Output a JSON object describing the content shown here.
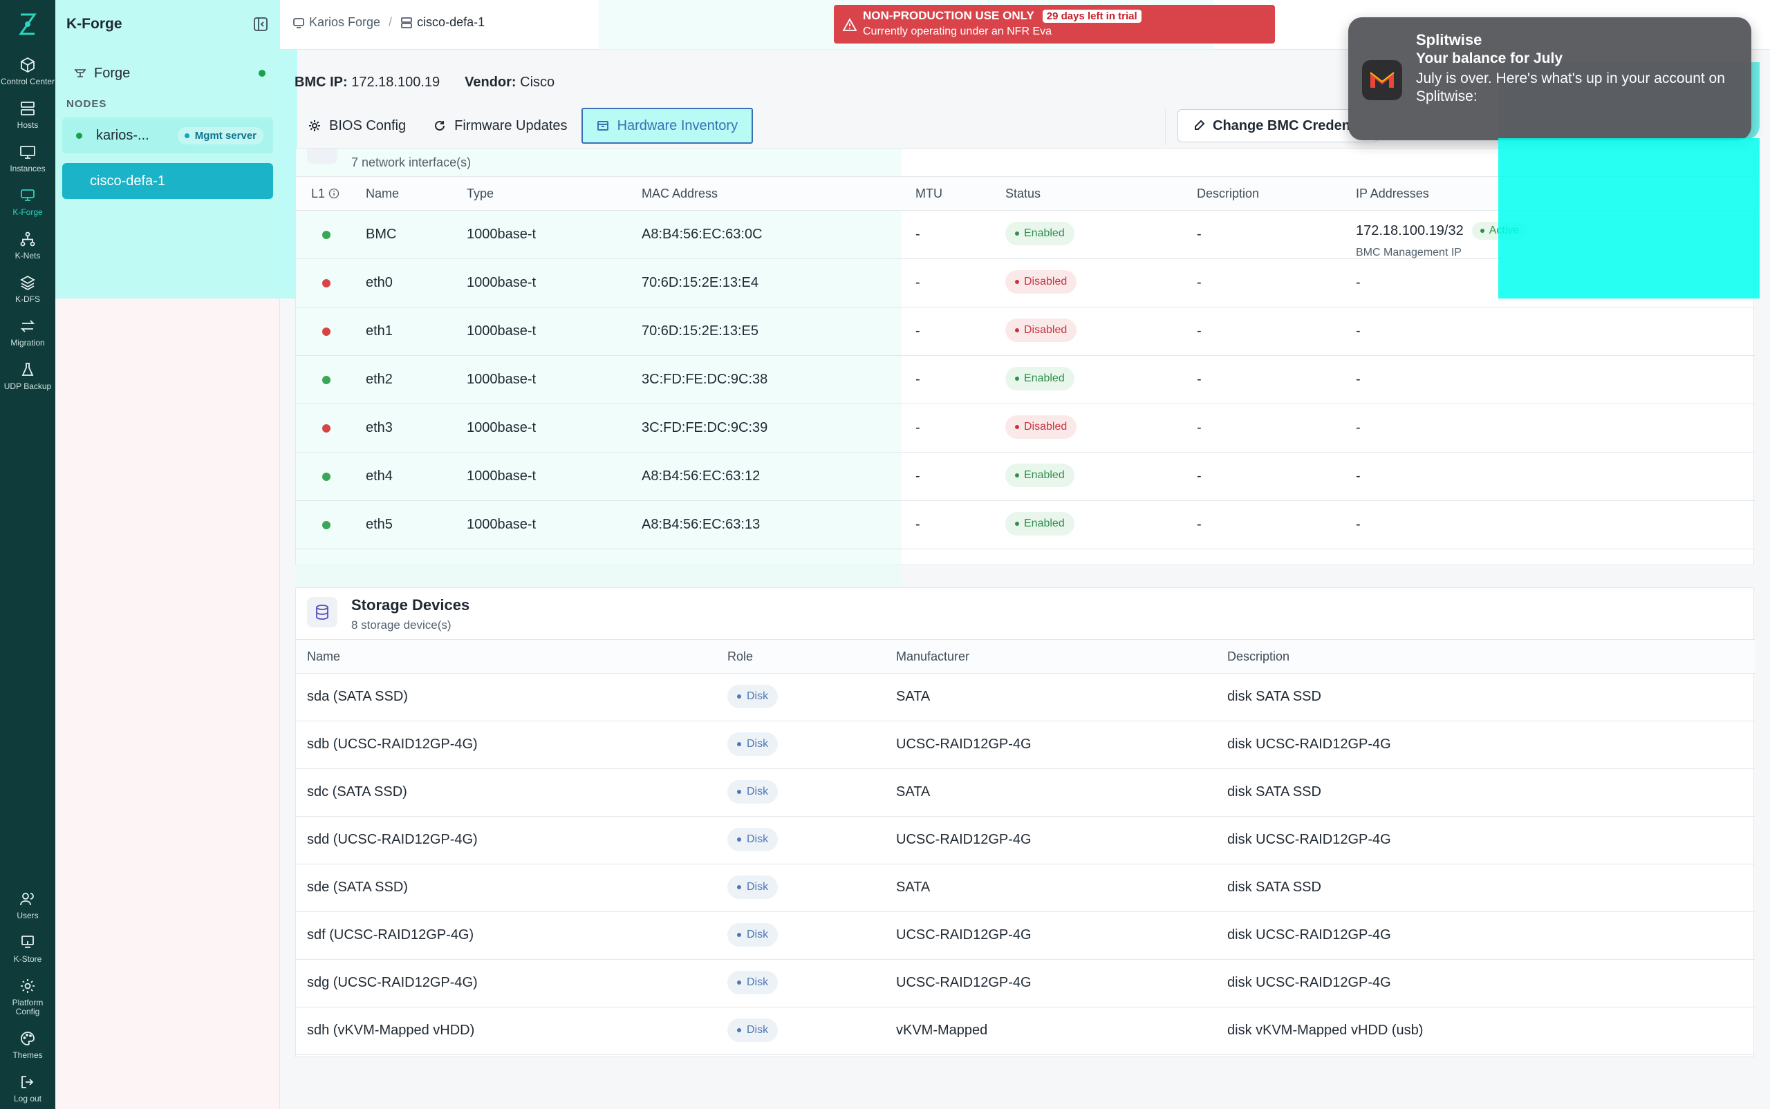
{
  "rail": {
    "items": [
      {
        "id": "control-center",
        "label": "Control Center",
        "icon": "cube-icon"
      },
      {
        "id": "hosts",
        "label": "Hosts",
        "icon": "server-icon"
      },
      {
        "id": "instances",
        "label": "Instances",
        "icon": "monitor-icon"
      },
      {
        "id": "k-forge",
        "label": "K-Forge",
        "icon": "forge-icon",
        "active": true
      },
      {
        "id": "k-nets",
        "label": "K-Nets",
        "icon": "network-icon"
      },
      {
        "id": "k-dfs",
        "label": "K-DFS",
        "icon": "layers-icon"
      },
      {
        "id": "migration",
        "label": "Migration",
        "icon": "arrows-icon"
      },
      {
        "id": "udp-backup",
        "label": "UDP Backup",
        "icon": "flask-icon"
      }
    ],
    "bottom": [
      {
        "id": "users",
        "label": "Users",
        "icon": "users-icon"
      },
      {
        "id": "k-store",
        "label": "K-Store",
        "icon": "store-icon"
      },
      {
        "id": "platform-config",
        "label": "Platform Config",
        "icon": "gear-icon"
      },
      {
        "id": "themes",
        "label": "Themes",
        "icon": "palette-icon"
      },
      {
        "id": "logout",
        "label": "Log out",
        "icon": "logout-icon"
      }
    ]
  },
  "tree": {
    "title": "K-Forge",
    "forge_label": "Forge",
    "nodes_label": "NODES",
    "nodes": [
      {
        "name": "karios-...",
        "badge": "Mgmt server"
      },
      {
        "name": "cisco-defa-1"
      }
    ]
  },
  "breadcrumb": {
    "root": "Karios Forge",
    "separator": "/",
    "current": "cisco-defa-1"
  },
  "trial": {
    "title": "NON-PRODUCTION USE ONLY",
    "pill": "29 days left in trial",
    "subtitle": "Currently operating under an NFR Eva"
  },
  "info": {
    "bmc_ip_label": "BMC IP:",
    "bmc_ip": "172.18.100.19",
    "vendor_label": "Vendor:",
    "vendor": "Cisco"
  },
  "tabs": [
    {
      "label": "BIOS Config",
      "icon": "gear-icon"
    },
    {
      "label": "Firmware Updates",
      "icon": "refresh-icon"
    },
    {
      "label": "Hardware Inventory",
      "icon": "box-icon",
      "active": true
    }
  ],
  "change_bmc_label": "Change BMC Creden",
  "network": {
    "subtitle": "7 network interface(s)",
    "columns": {
      "l1": "L1",
      "name": "Name",
      "type": "Type",
      "mac": "MAC Address",
      "mtu": "MTU",
      "status": "Status",
      "description": "Description",
      "ip": "IP Addresses"
    },
    "rows": [
      {
        "up": true,
        "name": "BMC",
        "type": "1000base-t",
        "mac": "A8:B4:56:EC:63:0C",
        "mtu": "-",
        "status": "Enabled",
        "description": "-",
        "ip": "172.18.100.19/32",
        "ip_badge": "Active",
        "ip_sub": "BMC Management IP"
      },
      {
        "up": false,
        "name": "eth0",
        "type": "1000base-t",
        "mac": "70:6D:15:2E:13:E4",
        "mtu": "-",
        "status": "Disabled",
        "description": "-",
        "ip": "-"
      },
      {
        "up": false,
        "name": "eth1",
        "type": "1000base-t",
        "mac": "70:6D:15:2E:13:E5",
        "mtu": "-",
        "status": "Disabled",
        "description": "-",
        "ip": "-"
      },
      {
        "up": true,
        "name": "eth2",
        "type": "1000base-t",
        "mac": "3C:FD:FE:DC:9C:38",
        "mtu": "-",
        "status": "Enabled",
        "description": "-",
        "ip": "-"
      },
      {
        "up": false,
        "name": "eth3",
        "type": "1000base-t",
        "mac": "3C:FD:FE:DC:9C:39",
        "mtu": "-",
        "status": "Disabled",
        "description": "-",
        "ip": "-"
      },
      {
        "up": true,
        "name": "eth4",
        "type": "1000base-t",
        "mac": "A8:B4:56:EC:63:12",
        "mtu": "-",
        "status": "Enabled",
        "description": "-",
        "ip": "-"
      },
      {
        "up": true,
        "name": "eth5",
        "type": "1000base-t",
        "mac": "A8:B4:56:EC:63:13",
        "mtu": "-",
        "status": "Enabled",
        "description": "-",
        "ip": "-"
      }
    ]
  },
  "storage": {
    "title": "Storage Devices",
    "subtitle": "8 storage device(s)",
    "columns": {
      "name": "Name",
      "role": "Role",
      "manufacturer": "Manufacturer",
      "description": "Description"
    },
    "rows": [
      {
        "name": "sda (SATA SSD)",
        "role": "Disk",
        "manufacturer": "SATA",
        "description": "disk SATA SSD"
      },
      {
        "name": "sdb (UCSC-RAID12GP-4G)",
        "role": "Disk",
        "manufacturer": "UCSC-RAID12GP-4G",
        "description": "disk UCSC-RAID12GP-4G"
      },
      {
        "name": "sdc (SATA SSD)",
        "role": "Disk",
        "manufacturer": "SATA",
        "description": "disk SATA SSD"
      },
      {
        "name": "sdd (UCSC-RAID12GP-4G)",
        "role": "Disk",
        "manufacturer": "UCSC-RAID12GP-4G",
        "description": "disk UCSC-RAID12GP-4G"
      },
      {
        "name": "sde (SATA SSD)",
        "role": "Disk",
        "manufacturer": "SATA",
        "description": "disk SATA SSD"
      },
      {
        "name": "sdf (UCSC-RAID12GP-4G)",
        "role": "Disk",
        "manufacturer": "UCSC-RAID12GP-4G",
        "description": "disk UCSC-RAID12GP-4G"
      },
      {
        "name": "sdg (UCSC-RAID12GP-4G)",
        "role": "Disk",
        "manufacturer": "UCSC-RAID12GP-4G",
        "description": "disk UCSC-RAID12GP-4G"
      },
      {
        "name": "sdh (vKVM-Mapped vHDD)",
        "role": "Disk",
        "manufacturer": "vKVM-Mapped",
        "description": "disk vKVM-Mapped vHDD (usb)"
      }
    ]
  },
  "notification": {
    "app": "Splitwise",
    "title": "Your balance for July",
    "body": "July is over. Here's what's up in your account on Splitwise:",
    "icon": "gmail-icon"
  },
  "colors": {
    "rail": "#0f3b3a",
    "accent": "#1ab3c7",
    "trial": "#d9434a",
    "enabled": "#2f8f4e",
    "disabled": "#c8333c"
  }
}
